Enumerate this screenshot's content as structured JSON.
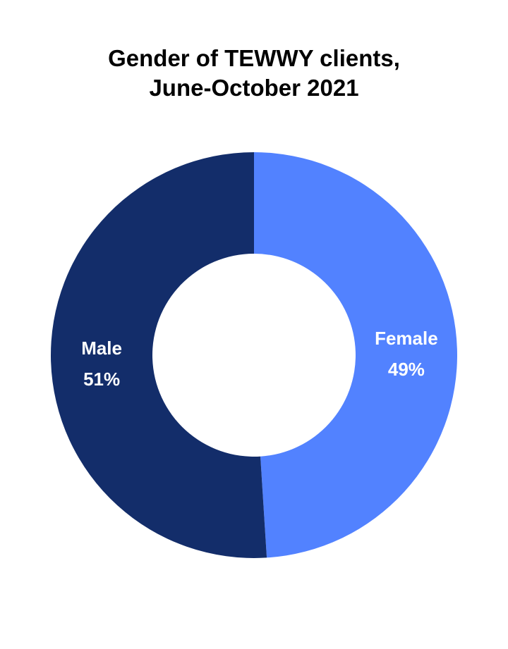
{
  "chart_data": {
    "type": "pie",
    "variant": "donut",
    "title_lines": [
      "Gender of TEWWY clients,",
      "June-October 2021"
    ],
    "slices": [
      {
        "name": "Female",
        "value": 49,
        "label": "49%",
        "color": "#5282FF"
      },
      {
        "name": "Male",
        "value": 51,
        "label": "51%",
        "color": "#132D6A"
      }
    ],
    "start": "12 o'clock",
    "direction": "clockwise",
    "legend": "none"
  }
}
